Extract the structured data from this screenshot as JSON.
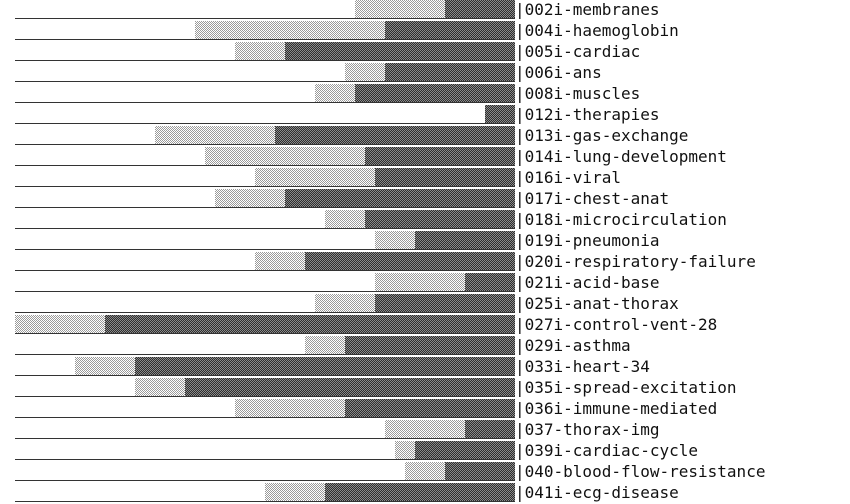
{
  "chart_data": {
    "type": "bar",
    "orientation": "horizontal",
    "stacked": true,
    "units_per_char": 10,
    "categories": [
      "|002i-membranes",
      "|004i-haemoglobin",
      "|005i-cardiac",
      "|006i-ans",
      "|008i-muscles",
      "|012i-therapies",
      "|013i-gas-exchange",
      "|014i-lung-development",
      "|016i-viral",
      "|017i-chest-anat",
      "|018i-microcirculation",
      "|019i-pneumonia",
      "|020i-respiratory-failure",
      "|021i-acid-base",
      "|025i-anat-thorax",
      "|027i-control-vent-28",
      "|029i-asthma",
      "|033i-heart-34",
      "|035i-spread-excitation",
      "|036i-immune-mediated",
      "|037-thorax-img",
      "|039i-cardiac-cycle",
      "|040-blood-flow-resistance",
      "|041i-ecg-disease"
    ],
    "series": [
      {
        "color": "#ffffff",
        "values": [
          34,
          18,
          22,
          33,
          30,
          47,
          14,
          19,
          24,
          20,
          31,
          36,
          24,
          36,
          30,
          0,
          29,
          6,
          12,
          22,
          37,
          38,
          39,
          25
        ]
      },
      {
        "color": "#cfcfcf",
        "values": [
          9,
          19,
          5,
          4,
          4,
          0,
          12,
          16,
          12,
          7,
          4,
          4,
          5,
          9,
          6,
          9,
          4,
          6,
          5,
          11,
          8,
          2,
          4,
          6
        ]
      },
      {
        "color": "#555555",
        "values": [
          7,
          13,
          23,
          13,
          16,
          3,
          24,
          15,
          14,
          23,
          15,
          10,
          21,
          5,
          14,
          41,
          17,
          38,
          33,
          17,
          5,
          10,
          7,
          19
        ]
      }
    ],
    "xlim": [
      0,
      500
    ],
    "grid": false,
    "legend": "none"
  }
}
